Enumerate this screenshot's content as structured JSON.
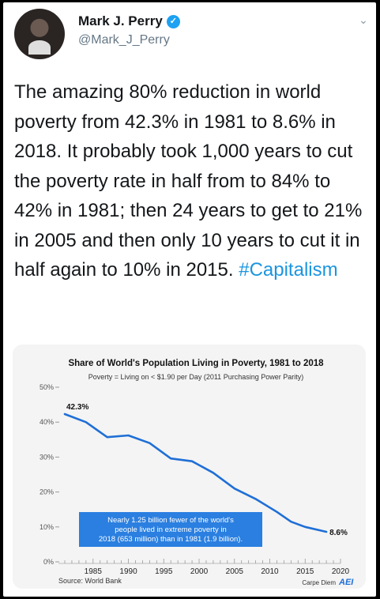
{
  "author": {
    "name": "Mark J. Perry",
    "handle": "@Mark_J_Perry",
    "verified_icon": "verified-badge-icon",
    "avatar": "profile-photo"
  },
  "tweet": {
    "text_main": "The amazing 80% reduction in world poverty from 42.3% in 1981 to 8.6% in 2018. It probably took 1,000 years to cut the poverty rate in half from to 84% to 42% in 1981; then 24 years to get to 21% in 2005 and then only 10 years to cut it in half again to 10% in 2015. ",
    "hashtag": "#Capitalism"
  },
  "colors": {
    "line": "#1f6fd6",
    "annotation_bg": "#2a7fe0",
    "hashtag": "#1b95e0"
  },
  "chart_data": {
    "type": "line",
    "title": "Share of World's Population Living in Poverty, 1981 to 2018",
    "subtitle": "Poverty = Living on < $1.90 per Day (2011 Purchasing Power Parity)",
    "ylim": [
      0,
      50
    ],
    "yticks": [
      "0%",
      "10%",
      "20%",
      "30%",
      "40%",
      "50%"
    ],
    "xticks": [
      "1985",
      "1990",
      "1995",
      "2000",
      "2005",
      "2010",
      "2015",
      "2020"
    ],
    "x": [
      1981,
      1984,
      1987,
      1990,
      1993,
      1996,
      1999,
      2002,
      2005,
      2008,
      2011,
      2013,
      2015,
      2018
    ],
    "values": [
      42.3,
      40.0,
      35.7,
      36.2,
      34.0,
      29.6,
      28.8,
      25.5,
      21.0,
      18.0,
      14.3,
      11.5,
      10.0,
      8.6
    ],
    "start_label": "42.3%",
    "end_label": "8.6%",
    "annotation": [
      "Nearly 1.25 billion fewer of the world's",
      "people lived in extreme poverty in",
      "2018 (653 million) than in 1981 (1.9 billion)."
    ],
    "source": "Source: World Bank",
    "brand": "Carpe Diem",
    "brand_logo": "AEI"
  }
}
